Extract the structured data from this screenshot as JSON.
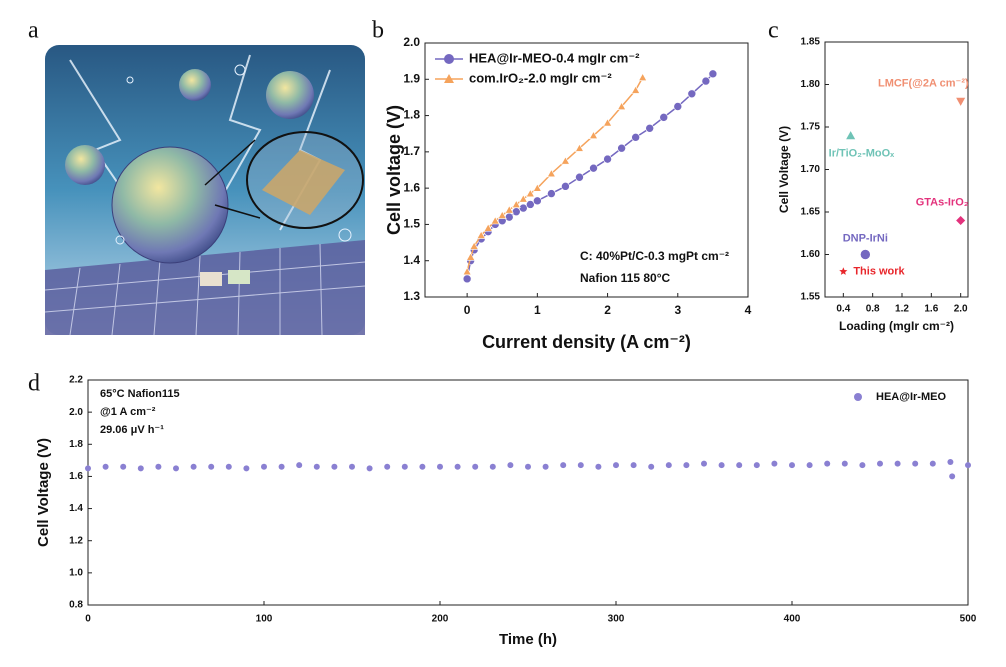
{
  "panel_a": {
    "label": "a"
  },
  "chart_data": [
    {
      "type": "line",
      "panel": "b",
      "x_label": "Current density (A cm⁻²)",
      "y_label": "Cell voltage (V)",
      "xlim": [
        -0.6,
        4.0
      ],
      "ylim": [
        1.3,
        2.0
      ],
      "xticks": [
        0,
        1,
        2,
        3,
        4
      ],
      "yticks": [
        1.3,
        1.4,
        1.5,
        1.6,
        1.7,
        1.8,
        1.9,
        {
          "value": 2.0,
          "label": "2.0"
        }
      ],
      "annotations": [
        "C: 40%Pt/C-0.3 mgPt cm⁻²",
        "Nafion 115 80°C"
      ],
      "series": [
        {
          "name": "HEA@Ir-MEO-0.4 mgIr cm⁻²",
          "color": "#7468c0",
          "marker": "circle",
          "x": [
            0,
            0.05,
            0.1,
            0.2,
            0.3,
            0.4,
            0.5,
            0.6,
            0.7,
            0.8,
            0.9,
            1.0,
            1.2,
            1.4,
            1.6,
            1.8,
            2.0,
            2.2,
            2.4,
            2.6,
            2.8,
            3.0,
            3.2,
            3.4,
            3.5
          ],
          "values": [
            1.35,
            1.4,
            1.43,
            1.46,
            1.48,
            1.5,
            1.51,
            1.52,
            1.535,
            1.545,
            1.555,
            1.565,
            1.585,
            1.605,
            1.63,
            1.655,
            1.68,
            1.71,
            1.74,
            1.765,
            1.795,
            1.825,
            1.86,
            1.895,
            1.915
          ]
        },
        {
          "name": "com.IrO₂-2.0 mgIr cm⁻²",
          "color": "#f5a35c",
          "marker": "triangle-up",
          "x": [
            0,
            0.05,
            0.1,
            0.2,
            0.3,
            0.4,
            0.5,
            0.6,
            0.7,
            0.8,
            0.9,
            1.0,
            1.2,
            1.4,
            1.6,
            1.8,
            2.0,
            2.2,
            2.4,
            2.5
          ],
          "values": [
            1.37,
            1.41,
            1.44,
            1.47,
            1.49,
            1.51,
            1.525,
            1.54,
            1.555,
            1.57,
            1.585,
            1.6,
            1.64,
            1.675,
            1.71,
            1.745,
            1.78,
            1.825,
            1.87,
            1.905
          ]
        }
      ]
    },
    {
      "type": "scatter",
      "panel": "c",
      "x_label": "Loading (mgIr cm⁻²)",
      "y_label": "Cell Voltage (V)",
      "xlim": [
        0.15,
        2.1
      ],
      "ylim": [
        1.55,
        1.85
      ],
      "xticks": [
        0.4,
        0.8,
        1.2,
        1.6,
        {
          "value": 2.0,
          "label": "2.0"
        }
      ],
      "yticks": [
        1.55,
        {
          "value": 1.6,
          "label": "1.60"
        },
        1.65,
        {
          "value": 1.7,
          "label": "1.70"
        },
        1.75,
        {
          "value": 1.8,
          "label": "1.80"
        },
        1.85
      ],
      "series": [
        {
          "name": "LMCF(@2A cm⁻²)",
          "color": "#f08f72",
          "marker": "triangle-down",
          "x": [
            2.0
          ],
          "values": [
            1.78
          ]
        },
        {
          "name": "Ir/TiO₂-MoOₓ",
          "color": "#6fc3b6",
          "marker": "triangle-up",
          "x": [
            0.5
          ],
          "values": [
            1.74
          ]
        },
        {
          "name": "GTAs-IrO₂",
          "color": "#e3327c",
          "marker": "diamond",
          "x": [
            2.0
          ],
          "values": [
            1.64
          ]
        },
        {
          "name": "DNP-IrNi",
          "color": "#7468c0",
          "marker": "circle",
          "x": [
            0.7
          ],
          "values": [
            1.6
          ]
        },
        {
          "name": "This work",
          "color": "#e8262b",
          "marker": "star",
          "x": [
            0.4
          ],
          "values": [
            1.58
          ]
        }
      ]
    },
    {
      "type": "scatter",
      "panel": "d",
      "x_label": "Time (h)",
      "y_label": "Cell Voltage (V)",
      "xlim": [
        0,
        500
      ],
      "ylim": [
        0.8,
        2.2
      ],
      "xticks": [
        0,
        100,
        200,
        300,
        400,
        500
      ],
      "yticks": [
        0.8,
        {
          "value": 1.0,
          "label": "1.0"
        },
        1.2,
        1.4,
        1.6,
        1.8,
        {
          "value": 2.0,
          "label": "2.0"
        },
        2.2
      ],
      "annotations": [
        "65°C Nafion115",
        "@1 A cm⁻²",
        "29.06 μV h⁻¹"
      ],
      "series": [
        {
          "name": "HEA@Ir-MEO",
          "color": "#8a80d2",
          "marker": "circle",
          "x": [
            0,
            10,
            20,
            30,
            40,
            50,
            60,
            70,
            80,
            90,
            100,
            110,
            120,
            130,
            140,
            150,
            160,
            170,
            180,
            190,
            200,
            210,
            220,
            230,
            240,
            250,
            260,
            270,
            280,
            290,
            300,
            310,
            320,
            330,
            340,
            350,
            360,
            370,
            380,
            390,
            400,
            410,
            420,
            430,
            440,
            450,
            460,
            470,
            480,
            490,
            500,
            491
          ],
          "values": [
            1.65,
            1.66,
            1.66,
            1.65,
            1.66,
            1.65,
            1.66,
            1.66,
            1.66,
            1.65,
            1.66,
            1.66,
            1.67,
            1.66,
            1.66,
            1.66,
            1.65,
            1.66,
            1.66,
            1.66,
            1.66,
            1.66,
            1.66,
            1.66,
            1.67,
            1.66,
            1.66,
            1.67,
            1.67,
            1.66,
            1.67,
            1.67,
            1.66,
            1.67,
            1.67,
            1.68,
            1.67,
            1.67,
            1.67,
            1.68,
            1.67,
            1.67,
            1.68,
            1.68,
            1.67,
            1.68,
            1.68,
            1.68,
            1.68,
            1.69,
            1.67,
            1.6
          ]
        }
      ]
    }
  ]
}
